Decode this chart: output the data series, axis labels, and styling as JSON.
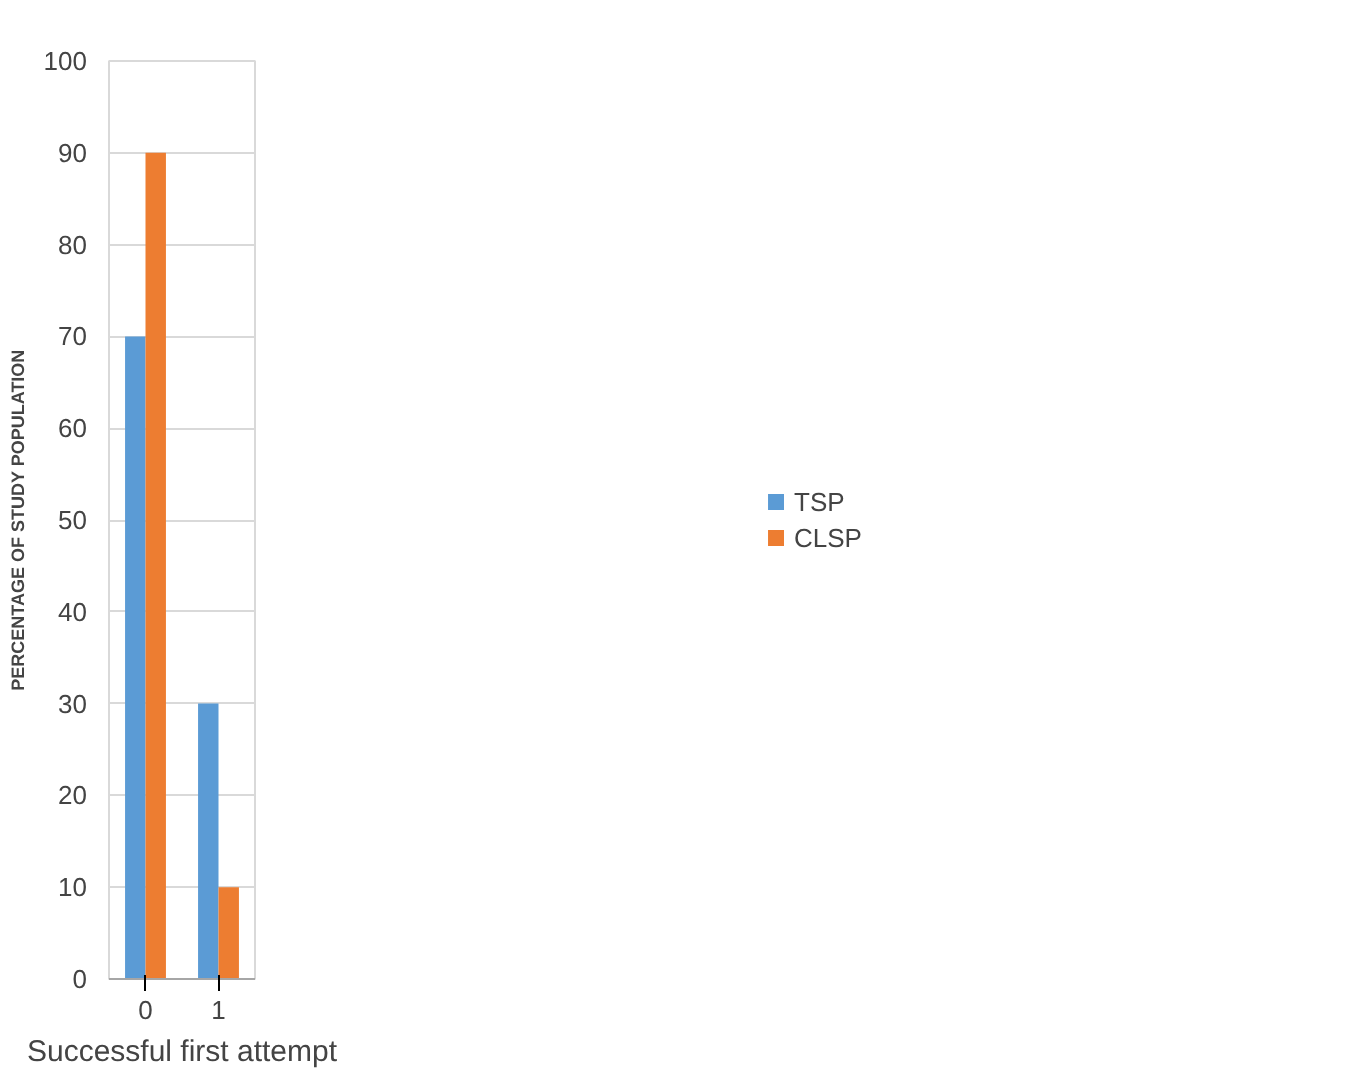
{
  "chart_data": {
    "type": "bar",
    "xlabel": "Successful first attempt",
    "ylabel": "PERCENTAGE OF STUDY POPULATION",
    "categories": [
      "0",
      "1"
    ],
    "series": [
      {
        "name": "TSP",
        "color": "#5b9bd5",
        "values": [
          70,
          30
        ]
      },
      {
        "name": "CLSP",
        "color": "#ed7d31",
        "values": [
          90,
          10
        ]
      }
    ],
    "ylim": [
      0,
      100
    ],
    "yticks": [
      0,
      10,
      20,
      30,
      40,
      50,
      60,
      70,
      80,
      90,
      100
    ],
    "grid": "y",
    "legend": "right"
  }
}
